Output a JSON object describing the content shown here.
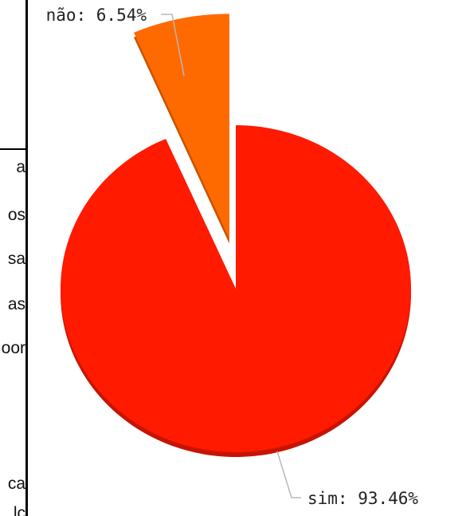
{
  "document_fragment": {
    "lines": [
      "a",
      "os",
      "sa",
      "as",
      "oor",
      "ca",
      "lc"
    ]
  },
  "chart_data": {
    "type": "pie",
    "categories": [
      "não",
      "sim"
    ],
    "values": [
      6.54,
      93.46
    ],
    "labels": [
      "não: 6.54%",
      "sim: 93.46%"
    ],
    "colors": [
      "#ff6a00",
      "#ff1a00"
    ],
    "exploded": [
      "não"
    ],
    "title": ""
  }
}
